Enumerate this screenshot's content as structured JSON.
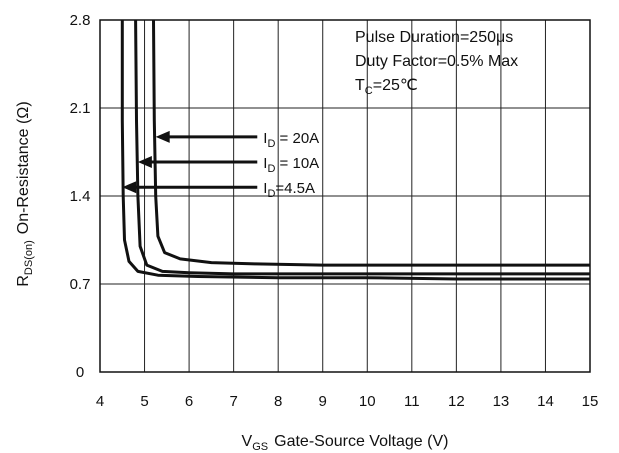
{
  "chart_data": {
    "type": "line",
    "xlabel": {
      "main": "V",
      "sub": "GS",
      "rest": "Gate-Source Voltage (V)"
    },
    "ylabel": {
      "main": "R",
      "sub": "DS(on)",
      "rest": "On-Resistance (Ω)"
    },
    "xlim": [
      4,
      15
    ],
    "ylim": [
      0,
      2.8
    ],
    "x_ticks": [
      "4",
      "5",
      "6",
      "7",
      "8",
      "9",
      "10",
      "11",
      "12",
      "13",
      "14",
      "15"
    ],
    "y_ticks": [
      "0",
      "0.7",
      "1.4",
      "2.1",
      "2.8"
    ],
    "grid": true,
    "notes": [
      {
        "id": "pulse",
        "text": "Pulse Duration=250μs"
      },
      {
        "id": "duty",
        "text": "Duty Factor=0.5% Max"
      },
      {
        "id": "temp",
        "main": "T",
        "sub": "C",
        "rest": "=25℃"
      }
    ],
    "series": [
      {
        "name": "I_D = 20A",
        "label": {
          "main": "I",
          "sub": "D",
          "rest": " = 20A"
        },
        "arrow_at": [
          5.25,
          1.87
        ],
        "label_at": [
          7.8,
          1.87
        ],
        "x": [
          5.2,
          5.22,
          5.25,
          5.3,
          5.45,
          5.8,
          6.5,
          7.5,
          9,
          11,
          13,
          15
        ],
        "y": [
          2.8,
          2.0,
          1.4,
          1.08,
          0.95,
          0.9,
          0.87,
          0.86,
          0.85,
          0.85,
          0.85,
          0.85
        ]
      },
      {
        "name": "I_D = 10A",
        "label": {
          "main": "I",
          "sub": "D",
          "rest": " = 10A"
        },
        "arrow_at": [
          4.85,
          1.67
        ],
        "label_at": [
          7.8,
          1.67
        ],
        "x": [
          4.8,
          4.82,
          4.85,
          4.9,
          5.05,
          5.4,
          6,
          7,
          9,
          11,
          13,
          15
        ],
        "y": [
          2.8,
          2.0,
          1.4,
          1.0,
          0.85,
          0.8,
          0.79,
          0.78,
          0.78,
          0.78,
          0.78,
          0.78
        ]
      },
      {
        "name": "I_D = 4.5A",
        "label": {
          "main": "I",
          "sub": "D",
          "rest": "=4.5A"
        },
        "arrow_at": [
          4.5,
          1.47
        ],
        "label_at": [
          7.8,
          1.47
        ],
        "x": [
          4.5,
          4.5,
          4.52,
          4.55,
          4.65,
          4.85,
          5.3,
          6.2,
          8,
          10,
          12,
          15
        ],
        "y": [
          2.8,
          2.0,
          1.4,
          1.05,
          0.88,
          0.8,
          0.77,
          0.76,
          0.75,
          0.75,
          0.74,
          0.74
        ]
      }
    ]
  }
}
